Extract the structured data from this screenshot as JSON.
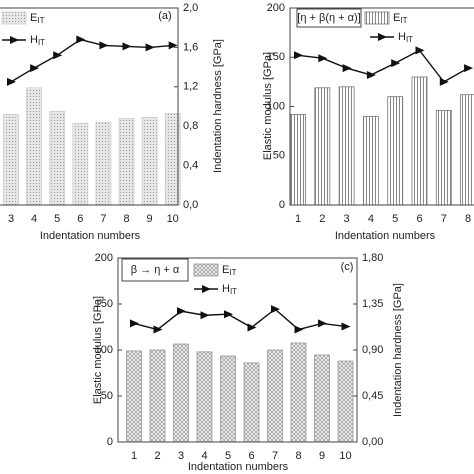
{
  "chart_data": [
    {
      "type": "combo",
      "panel_label": "(a)",
      "x_label": "Indentation numbers",
      "y2_label": "Indentation hardness [GPa]",
      "categories": [
        "3",
        "4",
        "5",
        "6",
        "7",
        "8",
        "9",
        "10"
      ],
      "ylim": [
        0,
        200
      ],
      "y2lim": [
        0,
        2
      ],
      "y2ticks": [
        {
          "value": 0,
          "label": "0,0"
        },
        {
          "value": 0.4,
          "label": "0,4"
        },
        {
          "value": 0.8,
          "label": "0,8"
        },
        {
          "value": 1.2,
          "label": "1,2"
        },
        {
          "value": 1.6,
          "label": "1,6"
        },
        {
          "value": 2,
          "label": "2,0"
        }
      ],
      "series": [
        {
          "name": "E",
          "subscript": "IT",
          "type": "bar",
          "color": "#cfcfcf",
          "values": [
            92,
            119,
            95,
            83,
            84,
            88,
            89,
            93
          ]
        },
        {
          "name": "H",
          "subscript": "IT",
          "type": "line",
          "axis": "y2",
          "color": "#111111",
          "values": [
            1.25,
            1.39,
            1.52,
            1.68,
            1.62,
            1.61,
            1.6,
            1.62
          ]
        }
      ]
    },
    {
      "type": "combo",
      "legend_title": "[η + β(η + α)]",
      "x_label": "Indentation numbers",
      "y_label": "Elastic modulus [GPa]",
      "categories": [
        "1",
        "2",
        "3",
        "4",
        "5",
        "6",
        "7",
        "8"
      ],
      "ylim": [
        0,
        200
      ],
      "yticks": [
        0,
        50,
        100,
        150,
        200
      ],
      "y2lim": [
        0,
        2
      ],
      "series": [
        {
          "name": "E",
          "subscript": "IT",
          "type": "bar",
          "color": "#777777",
          "values": [
            92,
            119,
            120,
            90,
            110,
            130,
            96,
            112
          ]
        },
        {
          "name": "H",
          "subscript": "IT",
          "type": "line",
          "axis": "y2",
          "color": "#111111",
          "values": [
            1.52,
            1.49,
            1.39,
            1.32,
            1.44,
            1.57,
            1.25,
            1.39
          ]
        }
      ]
    },
    {
      "type": "combo",
      "panel_label": "(c)",
      "legend_title": "β → η + α",
      "x_label": "Indentation numbers",
      "y_label": "Elastic modulus [GPa]",
      "y2_label": "Indentation hardness [GPa]",
      "categories": [
        "1",
        "2",
        "3",
        "4",
        "5",
        "6",
        "7",
        "8",
        "9",
        "10"
      ],
      "ylim": [
        0,
        200
      ],
      "yticks": [
        0,
        50,
        100,
        150,
        200
      ],
      "y2lim": [
        0,
        1.8
      ],
      "y2ticks": [
        {
          "value": 0,
          "label": "0,00"
        },
        {
          "value": 0.45,
          "label": "0,45"
        },
        {
          "value": 0.9,
          "label": "0,90"
        },
        {
          "value": 1.35,
          "label": "1,35"
        },
        {
          "value": 1.8,
          "label": "1,80"
        }
      ],
      "series": [
        {
          "name": "E",
          "subscript": "IT",
          "type": "bar",
          "color": "#999999",
          "values": [
            99,
            100,
            106.5,
            98,
            93.5,
            86,
            100,
            107.6,
            94.6,
            88
          ]
        },
        {
          "name": "H",
          "subscript": "IT",
          "type": "line",
          "axis": "y2",
          "color": "#111111",
          "values": [
            1.16,
            1.1,
            1.28,
            1.24,
            1.25,
            1.12,
            1.3,
            1.1,
            1.16,
            1.13
          ]
        }
      ]
    }
  ]
}
